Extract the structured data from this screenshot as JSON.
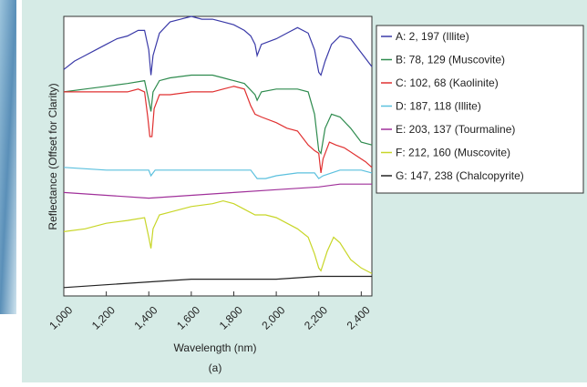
{
  "chart_data": {
    "type": "line",
    "xlabel": "Wavelength (nm)",
    "ylabel": "Reflectance (Offset for Clarity)",
    "caption": "(a)",
    "xlim": [
      1000,
      2450
    ],
    "ylim": [
      0,
      10
    ],
    "xticks": [
      {
        "value": 1000,
        "label": "1,000"
      },
      {
        "value": 1200,
        "label": "1,200"
      },
      {
        "value": 1400,
        "label": "1,400"
      },
      {
        "value": 1600,
        "label": "1,600"
      },
      {
        "value": 1800,
        "label": "1,800"
      },
      {
        "value": 2000,
        "label": "2,000"
      },
      {
        "value": 2200,
        "label": "2,200"
      },
      {
        "value": 2400,
        "label": "2,400"
      }
    ],
    "series": [
      {
        "name": "A: 2, 197 (Illite)",
        "color": "#3a3aa8",
        "x": [
          1000,
          1050,
          1100,
          1150,
          1200,
          1250,
          1300,
          1350,
          1380,
          1400,
          1410,
          1420,
          1450,
          1500,
          1550,
          1600,
          1650,
          1700,
          1750,
          1800,
          1850,
          1880,
          1900,
          1910,
          1930,
          2000,
          2050,
          2100,
          2150,
          2180,
          2200,
          2210,
          2230,
          2260,
          2300,
          2350,
          2400,
          2450
        ],
        "values": [
          8.1,
          8.4,
          8.6,
          8.8,
          9.0,
          9.2,
          9.3,
          9.5,
          9.5,
          8.8,
          7.9,
          8.6,
          9.4,
          9.8,
          9.9,
          10.0,
          9.9,
          9.9,
          9.8,
          9.7,
          9.5,
          9.3,
          9.0,
          8.6,
          9.0,
          9.2,
          9.4,
          9.6,
          9.4,
          8.8,
          8.0,
          7.9,
          8.4,
          9.0,
          9.3,
          9.2,
          8.7,
          8.2
        ]
      },
      {
        "name": "B: 78, 129 (Muscovite)",
        "color": "#2e8b4e",
        "x": [
          1000,
          1100,
          1200,
          1300,
          1380,
          1400,
          1410,
          1420,
          1450,
          1500,
          1600,
          1700,
          1750,
          1800,
          1850,
          1900,
          1910,
          1930,
          2000,
          2100,
          2150,
          2180,
          2200,
          2210,
          2230,
          2260,
          2300,
          2350,
          2400,
          2450
        ],
        "values": [
          7.3,
          7.4,
          7.5,
          7.6,
          7.7,
          7.0,
          6.6,
          7.3,
          7.7,
          7.8,
          7.9,
          7.9,
          7.8,
          7.7,
          7.6,
          7.2,
          7.0,
          7.3,
          7.4,
          7.4,
          7.3,
          6.5,
          5.2,
          5.1,
          6.0,
          6.5,
          6.4,
          6.0,
          5.5,
          5.4
        ]
      },
      {
        "name": "C: 102, 68 (Kaolinite)",
        "color": "#e03030",
        "x": [
          1000,
          1100,
          1200,
          1300,
          1350,
          1380,
          1395,
          1405,
          1415,
          1425,
          1450,
          1500,
          1600,
          1700,
          1750,
          1800,
          1850,
          1880,
          1900,
          1930,
          2000,
          2050,
          2100,
          2150,
          2180,
          2200,
          2210,
          2220,
          2250,
          2280,
          2320,
          2380,
          2420,
          2450
        ],
        "values": [
          7.3,
          7.3,
          7.3,
          7.3,
          7.4,
          7.3,
          6.4,
          5.7,
          5.7,
          6.7,
          7.2,
          7.2,
          7.3,
          7.3,
          7.4,
          7.5,
          7.4,
          6.8,
          6.5,
          6.4,
          6.2,
          6.0,
          5.9,
          5.4,
          5.2,
          5.1,
          4.4,
          4.9,
          5.5,
          5.4,
          5.3,
          5.0,
          4.8,
          4.6
        ]
      },
      {
        "name": "D: 187, 118 (Illite)",
        "color": "#5bc0de",
        "x": [
          1000,
          1200,
          1400,
          1410,
          1430,
          1600,
          1800,
          1880,
          1910,
          1950,
          2000,
          2100,
          2180,
          2200,
          2220,
          2300,
          2400,
          2450
        ],
        "values": [
          4.6,
          4.5,
          4.5,
          4.3,
          4.5,
          4.5,
          4.5,
          4.5,
          4.2,
          4.2,
          4.3,
          4.4,
          4.4,
          4.2,
          4.3,
          4.5,
          4.5,
          4.4
        ]
      },
      {
        "name": "E: 203, 137 (Tourmaline)",
        "color": "#a0309a",
        "x": [
          1000,
          1200,
          1400,
          1600,
          1800,
          2000,
          2200,
          2300,
          2450
        ],
        "values": [
          3.7,
          3.6,
          3.5,
          3.6,
          3.7,
          3.8,
          3.9,
          4.0,
          4.0
        ]
      },
      {
        "name": "F: 212, 160 (Muscovite)",
        "color": "#c8d628",
        "x": [
          1000,
          1100,
          1200,
          1300,
          1380,
          1400,
          1410,
          1420,
          1450,
          1500,
          1600,
          1700,
          1750,
          1800,
          1850,
          1900,
          1950,
          2000,
          2100,
          2150,
          2180,
          2200,
          2210,
          2240,
          2270,
          2300,
          2350,
          2400,
          2450
        ],
        "values": [
          2.3,
          2.4,
          2.6,
          2.7,
          2.8,
          2.1,
          1.7,
          2.4,
          2.9,
          3.0,
          3.2,
          3.3,
          3.4,
          3.3,
          3.1,
          2.9,
          2.9,
          2.8,
          2.4,
          2.1,
          1.5,
          1.0,
          0.9,
          1.6,
          2.1,
          1.9,
          1.3,
          1.0,
          0.8
        ]
      },
      {
        "name": "G: 147, 238 (Chalcopyrite)",
        "color": "#222222",
        "x": [
          1000,
          1200,
          1400,
          1600,
          1800,
          2000,
          2200,
          2300,
          2450
        ],
        "values": [
          0.3,
          0.4,
          0.5,
          0.6,
          0.6,
          0.6,
          0.7,
          0.7,
          0.7
        ]
      }
    ]
  }
}
